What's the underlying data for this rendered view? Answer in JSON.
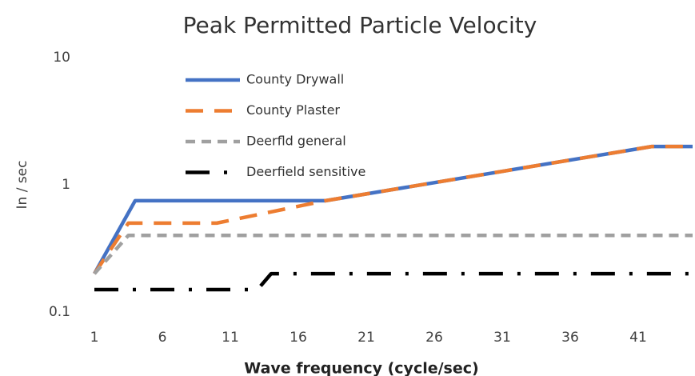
{
  "chart_data": {
    "type": "line",
    "title": "Peak Permitted Particle Velocity",
    "xlabel": "Wave frequency (cycle/sec)",
    "ylabel": "In / sec",
    "xlim": [
      1,
      45
    ],
    "xticks": [
      1,
      6,
      11,
      16,
      21,
      26,
      31,
      36,
      41
    ],
    "ylim": [
      0.1,
      10
    ],
    "yticks": [
      0.1,
      1,
      10
    ],
    "ylog": true,
    "grid": false,
    "legend": "upper left",
    "series": [
      {
        "name": "County Drywall",
        "color": "#4472c4",
        "dash": "solid",
        "x": [
          1,
          4,
          18,
          42,
          45
        ],
        "values": [
          0.2,
          0.75,
          0.75,
          2,
          2
        ]
      },
      {
        "name": "County Plaster",
        "color": "#ed7d31",
        "dash": "dashed",
        "x": [
          1,
          3.5,
          10,
          18,
          42,
          45
        ],
        "values": [
          0.2,
          0.5,
          0.5,
          0.75,
          2,
          2
        ]
      },
      {
        "name": "Deerfld general",
        "color": "#a0a0a0",
        "dash": "dashed-short",
        "x": [
          1,
          3.5,
          45
        ],
        "values": [
          0.2,
          0.4,
          0.4
        ]
      },
      {
        "name": "Deerfield sensitive",
        "color": "#000000",
        "dash": "dash-dot",
        "x": [
          1,
          13,
          14,
          45
        ],
        "values": [
          0.15,
          0.15,
          0.2,
          0.2
        ]
      }
    ]
  }
}
